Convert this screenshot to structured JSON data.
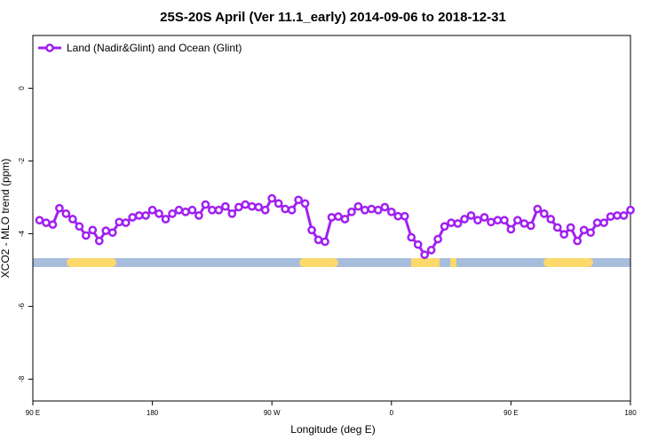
{
  "chart_data": {
    "type": "line",
    "title": "25S-20S April (Ver 11.1_early)   2014-09-06 to 2018-12-31",
    "x_label": "Longitude (deg E)",
    "y_label": "XCO2 - MLO trend (ppm)",
    "xlim": [
      90,
      540
    ],
    "ylim": [
      -8.6,
      1.45
    ],
    "xticks": [
      {
        "value": 90,
        "label": "90 E"
      },
      180,
      {
        "value": 270,
        "label": "90 W"
      },
      {
        "value": 360,
        "label": "0"
      },
      {
        "value": 450,
        "label": "90 E"
      },
      {
        "value": 540,
        "label": "180"
      }
    ],
    "yticks": [
      0,
      -2,
      -4,
      -6,
      -8
    ],
    "legend": "top-left",
    "x": [
      95,
      100,
      105,
      110,
      115,
      120,
      125,
      130,
      135,
      140,
      145,
      150,
      155,
      160,
      165,
      170,
      175,
      180,
      185,
      190,
      195,
      200,
      205,
      210,
      215,
      220,
      225,
      230,
      235,
      240,
      245,
      250,
      255,
      260,
      265,
      270,
      275,
      280,
      285,
      290,
      295,
      300,
      305,
      310,
      315,
      320,
      325,
      330,
      335,
      340,
      345,
      350,
      355,
      360,
      365,
      370,
      375,
      380,
      385,
      390,
      395,
      400,
      405,
      410,
      415,
      420,
      425,
      430,
      435,
      440,
      445,
      450,
      455,
      460,
      465,
      470,
      475,
      480,
      485,
      490,
      495,
      500,
      505,
      510,
      515,
      520,
      525,
      530,
      535,
      540
    ],
    "series": [
      {
        "name": "Land (Nadir&Glint) and Ocean (Glint)",
        "color": "#a020f0",
        "values": [
          -3.63,
          -3.7,
          -3.75,
          -3.3,
          -3.45,
          -3.6,
          -3.8,
          -4.05,
          -3.9,
          -4.2,
          -3.92,
          -3.97,
          -3.68,
          -3.7,
          -3.55,
          -3.5,
          -3.5,
          -3.35,
          -3.45,
          -3.6,
          -3.45,
          -3.35,
          -3.4,
          -3.35,
          -3.5,
          -3.2,
          -3.35,
          -3.35,
          -3.25,
          -3.45,
          -3.27,
          -3.2,
          -3.25,
          -3.27,
          -3.35,
          -3.03,
          -3.17,
          -3.32,
          -3.35,
          -3.07,
          -3.17,
          -3.9,
          -4.17,
          -4.22,
          -3.55,
          -3.53,
          -3.6,
          -3.4,
          -3.25,
          -3.35,
          -3.32,
          -3.35,
          -3.27,
          -3.4,
          -3.52,
          -3.52,
          -4.1,
          -4.3,
          -4.58,
          -4.45,
          -4.15,
          -3.8,
          -3.7,
          -3.72,
          -3.6,
          -3.5,
          -3.63,
          -3.55,
          -3.68,
          -3.63,
          -3.63,
          -3.88,
          -3.63,
          -3.72,
          -3.78,
          -3.32,
          -3.45,
          -3.6,
          -3.83,
          -4.02,
          -3.83,
          -4.2,
          -3.9,
          -3.97,
          -3.7,
          -3.7,
          -3.53,
          -3.5,
          -3.5,
          -3.35
        ]
      }
    ]
  }
}
